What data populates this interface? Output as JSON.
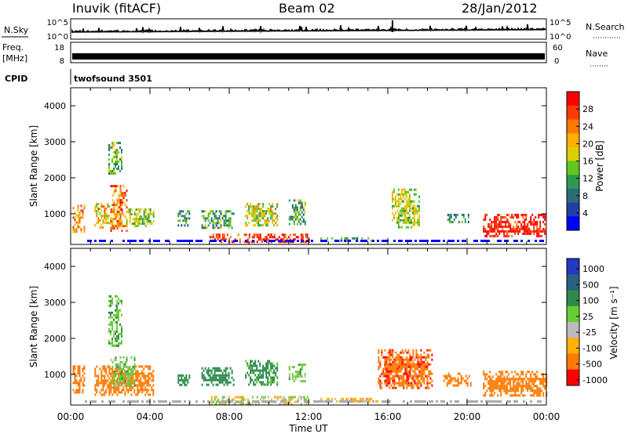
{
  "header": {
    "station": "Inuvik (fitACF)",
    "beam": "Beam 02",
    "date": "28/Jan/2012"
  },
  "top_panels": {
    "nsky_label": "N.Sky",
    "nsky_ticks": [
      "10^5",
      "10^0"
    ],
    "nsearch_label": "N.Search",
    "nsearch_ticks": [
      "10^5",
      "10^0"
    ],
    "freq_label": "Freq.",
    "freq_unit": "[MHz]",
    "freq_ticks": [
      "18",
      "8"
    ],
    "nave_label": "Nave",
    "nave_ticks": [
      "60",
      "0"
    ],
    "cpid_label": "CPID",
    "cpid_value": "twofsound 3501"
  },
  "colorbars": {
    "power": {
      "label": "Power [dB]",
      "ticks": [
        "28",
        "24",
        "20",
        "16",
        "12",
        "8",
        "4"
      ],
      "colors": [
        "#ff0000",
        "#ff3a00",
        "#ff7800",
        "#ffb000",
        "#d8d000",
        "#62c820",
        "#2e9a50",
        "#2a6c78",
        "#2040a8",
        "#0000ff"
      ]
    },
    "velocity": {
      "label": "Velocity [m s⁻¹]",
      "ticks": [
        "1000",
        "500",
        "100",
        "25",
        "-25",
        "-100",
        "-500",
        "-1000"
      ],
      "colors": [
        "#2438c0",
        "#2a6080",
        "#2e8a4c",
        "#66cc33",
        "#bbbbbb",
        "#ffb000",
        "#ff7a00",
        "#ff0000"
      ]
    }
  },
  "chart_data": [
    {
      "type": "heatmap",
      "title": "Power",
      "ylabel": "Slant Range [km]",
      "yticks": [
        "4000",
        "3000",
        "2000",
        "1000"
      ],
      "ylim": [
        150,
        4500
      ],
      "xlabel": "Time UT",
      "xticks": [
        "00:00",
        "04:00",
        "08:00",
        "12:00",
        "16:00",
        "20:00",
        "00:00"
      ],
      "xlim_hours": [
        0,
        24
      ],
      "patches": [
        {
          "t0": 0.1,
          "t1": 0.7,
          "r0": 500,
          "r1": 1250,
          "value": 20
        },
        {
          "t0": 1.2,
          "t1": 2.0,
          "r0": 600,
          "r1": 1300,
          "value": 18
        },
        {
          "t0": 2.0,
          "t1": 2.8,
          "r0": 500,
          "r1": 1800,
          "value": 22
        },
        {
          "t0": 2.8,
          "t1": 4.2,
          "r0": 650,
          "r1": 1150,
          "value": 14
        },
        {
          "t0": 1.9,
          "t1": 2.6,
          "r0": 2100,
          "r1": 3000,
          "value": 12
        },
        {
          "t0": 5.4,
          "t1": 6.0,
          "r0": 700,
          "r1": 1100,
          "value": 8
        },
        {
          "t0": 6.6,
          "t1": 8.2,
          "r0": 600,
          "r1": 1100,
          "value": 10
        },
        {
          "t0": 8.8,
          "t1": 10.4,
          "r0": 700,
          "r1": 1300,
          "value": 15
        },
        {
          "t0": 7.0,
          "t1": 12.0,
          "r0": 200,
          "r1": 450,
          "value": 26
        },
        {
          "t0": 11.0,
          "t1": 11.8,
          "r0": 700,
          "r1": 1400,
          "value": 10
        },
        {
          "t0": 12.6,
          "t1": 15.2,
          "r0": 250,
          "r1": 350,
          "value": 8
        },
        {
          "t0": 16.2,
          "t1": 17.6,
          "r0": 650,
          "r1": 1700,
          "value": 14
        },
        {
          "t0": 19.0,
          "t1": 20.1,
          "r0": 800,
          "r1": 1000,
          "value": 8
        },
        {
          "t0": 20.8,
          "t1": 23.9,
          "r0": 350,
          "r1": 1000,
          "value": 28
        }
      ]
    },
    {
      "type": "heatmap",
      "title": "Velocity",
      "ylabel": "Slant Range [km]",
      "yticks": [
        "4000",
        "3000",
        "2000",
        "1000"
      ],
      "ylim": [
        150,
        4500
      ],
      "xlabel": "Time UT",
      "xticks": [
        "00:00",
        "04:00",
        "08:00",
        "12:00",
        "16:00",
        "20:00",
        "00:00"
      ],
      "xlim_hours": [
        0,
        24
      ],
      "patches": [
        {
          "t0": 0.1,
          "t1": 0.7,
          "r0": 500,
          "r1": 1250,
          "value": -300
        },
        {
          "t0": 1.2,
          "t1": 4.2,
          "r0": 450,
          "r1": 1250,
          "value": -200
        },
        {
          "t0": 2.0,
          "t1": 3.2,
          "r0": 700,
          "r1": 1500,
          "value": 60
        },
        {
          "t0": 1.9,
          "t1": 2.6,
          "r0": 1800,
          "r1": 3200,
          "value": 80
        },
        {
          "t0": 5.4,
          "t1": 6.0,
          "r0": 700,
          "r1": 1000,
          "value": 200
        },
        {
          "t0": 6.6,
          "t1": 8.2,
          "r0": 700,
          "r1": 1200,
          "value": 200
        },
        {
          "t0": 8.8,
          "t1": 10.4,
          "r0": 700,
          "r1": 1400,
          "value": 150
        },
        {
          "t0": 7.0,
          "t1": 12.0,
          "r0": 200,
          "r1": 400,
          "value": 0
        },
        {
          "t0": 11.0,
          "t1": 11.8,
          "r0": 800,
          "r1": 1300,
          "value": 60
        },
        {
          "t0": 12.6,
          "t1": 15.5,
          "r0": 250,
          "r1": 350,
          "value": -50
        },
        {
          "t0": 15.5,
          "t1": 18.2,
          "r0": 600,
          "r1": 1700,
          "value": -400
        },
        {
          "t0": 18.8,
          "t1": 20.2,
          "r0": 700,
          "r1": 1050,
          "value": -300
        },
        {
          "t0": 20.8,
          "t1": 24.0,
          "r0": 400,
          "r1": 1100,
          "value": -200
        }
      ]
    }
  ]
}
